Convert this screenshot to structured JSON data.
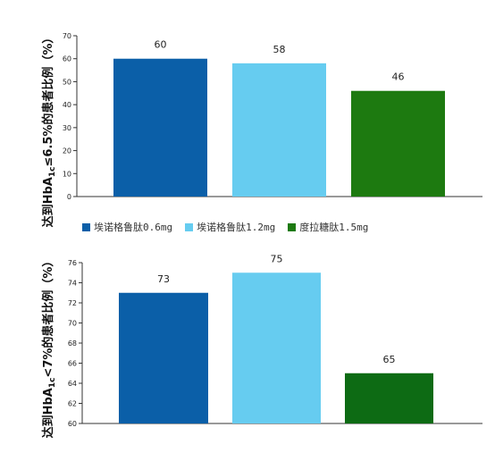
{
  "chart_data": [
    {
      "type": "bar",
      "categories": [
        "埃诺格鲁肽0.6mg",
        "埃诺格鲁肽1.2mg",
        "度拉糖肽1.5mg"
      ],
      "values": [
        60,
        58,
        46
      ],
      "ylabel_main": "达到HbA",
      "ylabel_sub": "1c",
      "ylabel_rest": "≤6.5%的患者比例（%）",
      "ylim": [
        0,
        70
      ],
      "yticks": [
        0,
        10,
        20,
        30,
        40,
        50,
        60,
        70
      ],
      "colors": [
        "#0b5fa8",
        "#66ccf0",
        "#1d7a10"
      ],
      "legend": "bottom"
    },
    {
      "type": "bar",
      "categories": [
        "埃诺格鲁肽0.6mg",
        "埃诺格鲁肽1.2mg",
        "度拉糖肽1.5mg"
      ],
      "values": [
        73,
        75,
        65
      ],
      "ylabel_main": "达到HbA",
      "ylabel_sub": "1c",
      "ylabel_rest": "<7%的患者比例（%）",
      "ylim": [
        60,
        76
      ],
      "yticks": [
        60,
        62,
        64,
        66,
        68,
        70,
        72,
        74,
        76
      ],
      "colors": [
        "#0b5fa8",
        "#66ccf0",
        "#0d6b14"
      ]
    }
  ],
  "legend": {
    "items": [
      {
        "label": "埃诺格鲁肽0.6mg",
        "color": "#0b5fa8"
      },
      {
        "label": "埃诺格鲁肽1.2mg",
        "color": "#66ccf0"
      },
      {
        "label": "度拉糖肽1.5mg",
        "color": "#1d7a10"
      }
    ]
  }
}
